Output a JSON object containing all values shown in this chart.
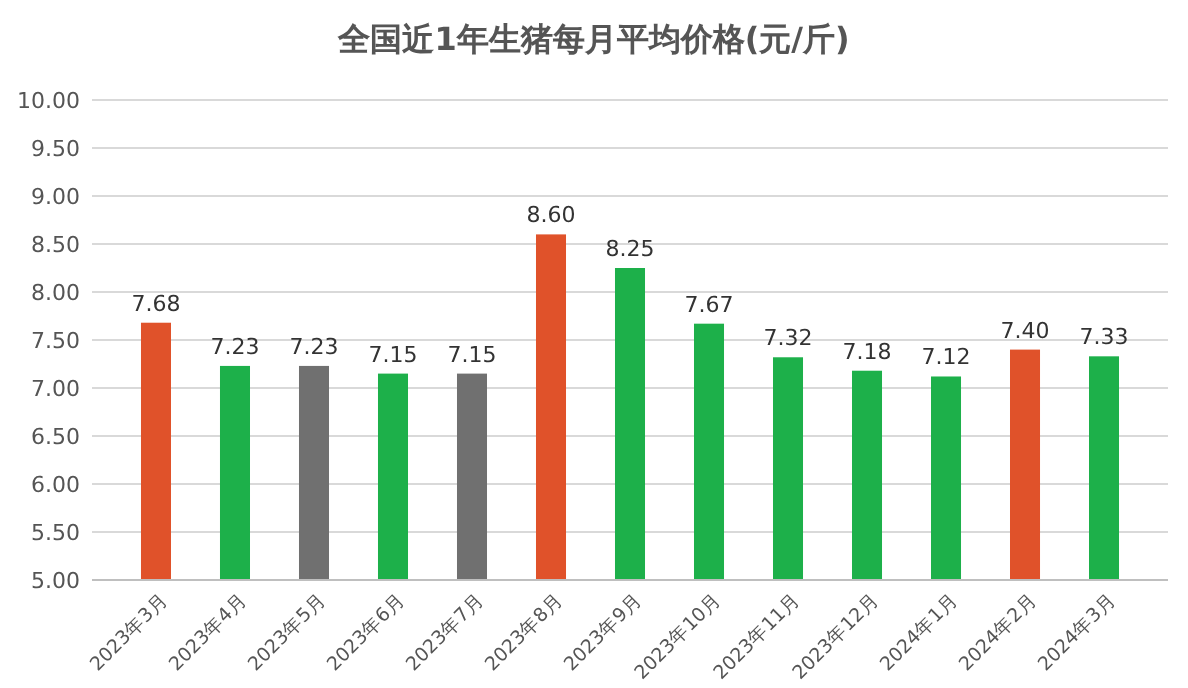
{
  "chart_data": {
    "type": "bar",
    "title": "全国近1年生猪每月平均价格(元/斤)",
    "categories": [
      "2023年3月",
      "2023年4月",
      "2023年5月",
      "2023年6月",
      "2023年7月",
      "2023年8月",
      "2023年9月",
      "2023年10月",
      "2023年11月",
      "2023年12月",
      "2024年1月",
      "2024年2月",
      "2024年3月"
    ],
    "values": [
      7.68,
      7.23,
      7.23,
      7.15,
      7.15,
      8.6,
      8.25,
      7.67,
      7.32,
      7.18,
      7.12,
      7.4,
      7.33
    ],
    "colors": [
      "#e0522a",
      "#1db04a",
      "#707070",
      "#1db04a",
      "#707070",
      "#e0522a",
      "#1db04a",
      "#1db04a",
      "#1db04a",
      "#1db04a",
      "#1db04a",
      "#e0522a",
      "#1db04a"
    ],
    "ylim": [
      5,
      10
    ],
    "yticks": [
      {
        "value": 5,
        "label": "5.00"
      },
      {
        "value": 5.5,
        "label": "5.50"
      },
      {
        "value": 6,
        "label": "6.00"
      },
      {
        "value": 6.5,
        "label": "6.50"
      },
      {
        "value": 7,
        "label": "7.00"
      },
      {
        "value": 7.5,
        "label": "7.50"
      },
      {
        "value": 8,
        "label": "8.00"
      },
      {
        "value": 8.5,
        "label": "8.50"
      },
      {
        "value": 9,
        "label": "9.00"
      },
      {
        "value": 9.5,
        "label": "9.50"
      },
      {
        "value": 10,
        "label": "10.00"
      }
    ],
    "value_labels": [
      "7.68",
      "7.23",
      "7.23",
      "7.15",
      "7.15",
      "8.60",
      "8.25",
      "7.67",
      "7.32",
      "7.18",
      "7.12",
      "7.40",
      "7.33"
    ],
    "grid": "y"
  }
}
